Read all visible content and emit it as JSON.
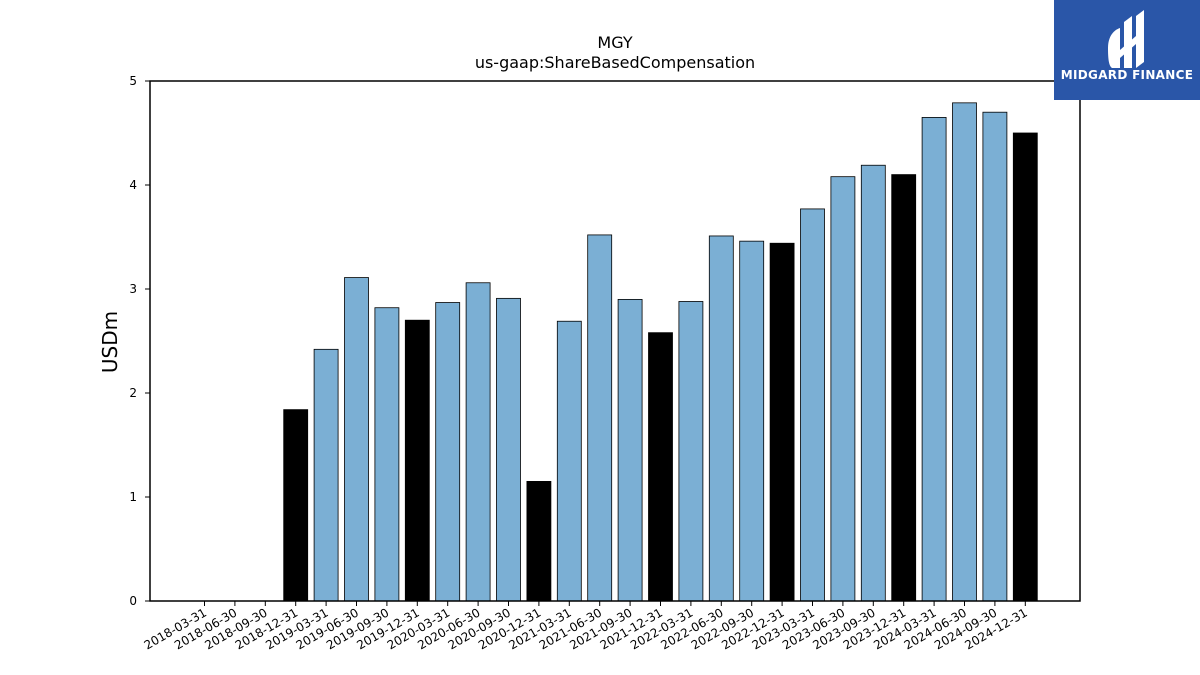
{
  "chart_data": {
    "type": "bar",
    "title": "MGY",
    "subtitle": "us-gaap:ShareBasedCompensation",
    "xlabel": "",
    "ylabel": "USDm",
    "ylim": [
      0,
      5
    ],
    "yticks": [
      "0",
      "1",
      "2",
      "3",
      "4",
      "5"
    ],
    "grid": false,
    "colors": {
      "quarter": "#7bafd4",
      "annual": "#000000"
    },
    "categories": [
      "2018-03-31",
      "2018-06-30",
      "2018-09-30",
      "2018-12-31",
      "2019-03-31",
      "2019-06-30",
      "2019-09-30",
      "2019-12-31",
      "2020-03-31",
      "2020-06-30",
      "2020-09-30",
      "2020-12-31",
      "2021-03-31",
      "2021-06-30",
      "2021-09-30",
      "2021-12-31",
      "2022-03-31",
      "2022-06-30",
      "2022-09-30",
      "2022-12-31",
      "2023-03-31",
      "2023-06-30",
      "2023-09-30",
      "2023-12-31",
      "2024-03-31",
      "2024-06-30",
      "2024-09-30",
      "2024-12-31"
    ],
    "values": [
      null,
      null,
      null,
      1.84,
      2.42,
      3.11,
      2.82,
      2.7,
      2.87,
      3.06,
      2.91,
      1.15,
      2.69,
      3.52,
      2.9,
      2.58,
      2.88,
      3.51,
      3.46,
      3.44,
      3.77,
      4.08,
      4.19,
      4.1,
      4.65,
      4.79,
      4.7,
      4.5
    ],
    "bar_kind": [
      "quarter",
      "quarter",
      "quarter",
      "annual",
      "quarter",
      "quarter",
      "quarter",
      "annual",
      "quarter",
      "quarter",
      "quarter",
      "annual",
      "quarter",
      "quarter",
      "quarter",
      "annual",
      "quarter",
      "quarter",
      "quarter",
      "annual",
      "quarter",
      "quarter",
      "quarter",
      "annual",
      "quarter",
      "quarter",
      "quarter",
      "annual"
    ]
  },
  "logo": {
    "text": "MIDGARD FINANCE"
  }
}
